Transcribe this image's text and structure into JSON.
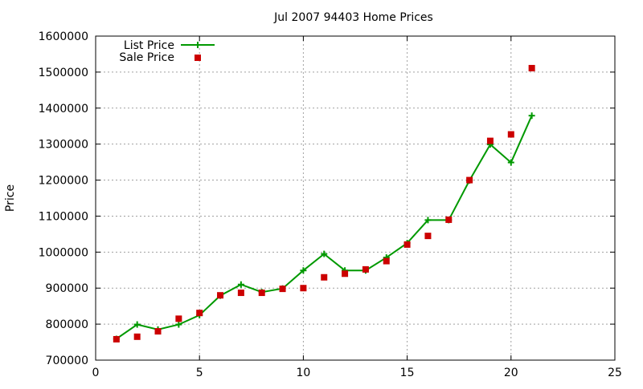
{
  "chart_data": {
    "type": "line",
    "title": "Jul 2007 94403 Home Prices",
    "xlabel": "",
    "ylabel": "Price",
    "xlim": [
      0,
      25
    ],
    "ylim": [
      700000,
      1600000
    ],
    "xticks": [
      "0",
      "5",
      "10",
      "15",
      "20",
      "25"
    ],
    "yticks": [
      "700000",
      "800000",
      "900000",
      "1000000",
      "1100000",
      "1200000",
      "1300000",
      "1400000",
      "1500000",
      "1600000"
    ],
    "grid": true,
    "legend_position": "top-left",
    "series": [
      {
        "name": "List Price",
        "style": "linespoints",
        "color": "#009900",
        "points": [
          [
            1,
            759000
          ],
          [
            2,
            799000
          ],
          [
            3,
            785000
          ],
          [
            4,
            799000
          ],
          [
            5,
            825000
          ],
          [
            6,
            879000
          ],
          [
            7,
            910000
          ],
          [
            8,
            889000
          ],
          [
            9,
            899000
          ],
          [
            10,
            949000
          ],
          [
            11,
            995000
          ],
          [
            12,
            949000
          ],
          [
            13,
            949000
          ],
          [
            14,
            985000
          ],
          [
            15,
            1025000
          ],
          [
            16,
            1089000
          ],
          [
            17,
            1089000
          ],
          [
            18,
            1199000
          ],
          [
            19,
            1299000
          ],
          [
            20,
            1249000
          ],
          [
            21,
            1379000
          ]
        ]
      },
      {
        "name": "Sale Price",
        "style": "points",
        "color": "#cc0000",
        "points": [
          [
            1,
            758000
          ],
          [
            2,
            765000
          ],
          [
            3,
            780000
          ],
          [
            4,
            815000
          ],
          [
            5,
            831000
          ],
          [
            6,
            880000
          ],
          [
            7,
            887000
          ],
          [
            8,
            887000
          ],
          [
            9,
            898000
          ],
          [
            10,
            900000
          ],
          [
            11,
            930000
          ],
          [
            12,
            940000
          ],
          [
            13,
            952000
          ],
          [
            14,
            975000
          ],
          [
            15,
            1021000
          ],
          [
            16,
            1045000
          ],
          [
            17,
            1090000
          ],
          [
            18,
            1200000
          ],
          [
            19,
            1309000
          ],
          [
            20,
            1327000
          ],
          [
            21,
            1511000
          ]
        ]
      }
    ]
  }
}
